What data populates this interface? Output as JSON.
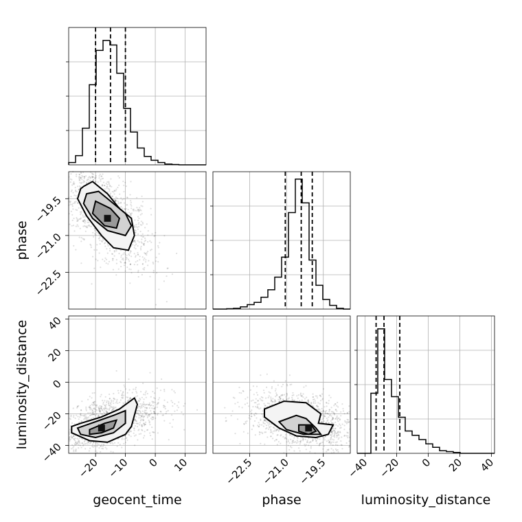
{
  "chart_data": {
    "type": "corner",
    "parameters": [
      "geocent_time",
      "phase",
      "luminosity_distance"
    ],
    "ranges": {
      "geocent_time": [
        -29,
        17
      ],
      "phase": [
        -24.0,
        -18.4
      ],
      "luminosity_distance": [
        -45,
        42
      ]
    },
    "ticks": {
      "geocent_time": [
        -20,
        -10,
        0,
        10
      ],
      "phase": [
        -22.5,
        -21.0,
        -19.5
      ],
      "luminosity_distance": [
        -40,
        -20,
        0,
        20,
        40
      ]
    },
    "tick_labels": {
      "geocent_time": [
        "−20",
        "−10",
        "0",
        "10"
      ],
      "phase": [
        "−22.5",
        "−21.0",
        "−19.5"
      ],
      "luminosity_distance": [
        "−40",
        "−20",
        "0",
        "20",
        "40"
      ]
    },
    "grid": true,
    "histograms": [
      {
        "parameter": "geocent_time",
        "bin_edges": [
          -29,
          -26.7,
          -24.4,
          -22.1,
          -19.8,
          -17.5,
          -15.2,
          -12.9,
          -10.6,
          -8.3,
          -6.0,
          -3.7,
          -1.4,
          0.9,
          3.2,
          5.6,
          7.9,
          10.2,
          12.5,
          14.8,
          17
        ],
        "counts": [
          3,
          12,
          48,
          105,
          150,
          163,
          157,
          120,
          74,
          43,
          22,
          11,
          6,
          3,
          1,
          0.5,
          0,
          0,
          0,
          0
        ],
        "quantiles": [
          -20,
          -15,
          -10
        ],
        "ylim": [
          0,
          180
        ]
      },
      {
        "parameter": "phase",
        "bin_edges": [
          -24.0,
          -23.72,
          -23.44,
          -23.16,
          -22.88,
          -22.6,
          -22.32,
          -22.04,
          -21.76,
          -21.48,
          -21.2,
          -20.92,
          -20.64,
          -20.36,
          -20.08,
          -19.8,
          -19.52,
          -19.24,
          -18.96,
          -18.68,
          -18.4
        ],
        "counts": [
          0,
          0,
          0.5,
          1,
          3,
          6,
          9,
          16,
          26,
          43,
          70,
          130,
          175,
          143,
          66,
          32,
          13,
          5,
          1,
          0
        ],
        "quantiles": [
          -21.05,
          -20.4,
          -19.95
        ],
        "ylim": [
          0,
          185
        ]
      },
      {
        "parameter": "luminosity_distance",
        "bin_edges": [
          -45,
          -40.65,
          -36.3,
          -31.95,
          -27.6,
          -23.25,
          -18.9,
          -14.55,
          -10.2,
          -5.85,
          -1.5,
          2.85,
          7.2,
          11.55,
          15.9,
          20.25,
          24.6,
          28.95,
          33.3,
          37.65,
          42
        ],
        "counts": [
          0,
          0,
          70,
          145,
          86,
          66,
          42,
          26,
          21,
          16,
          11,
          7,
          3,
          2,
          1,
          0,
          0,
          0,
          0,
          0
        ],
        "quantiles": [
          -33,
          -28,
          -18
        ],
        "ylim": [
          0,
          160
        ]
      }
    ],
    "pairs": [
      {
        "x": "geocent_time",
        "y": "phase",
        "peak": [
          -16,
          -20.3
        ],
        "contours": [
          [
            [
              -24,
              -19.0
            ],
            [
              -21,
              -18.8
            ],
            [
              -16,
              -19.3
            ],
            [
              -12,
              -19.9
            ],
            [
              -8,
              -20.3
            ],
            [
              -7,
              -21.0
            ],
            [
              -9,
              -21.6
            ],
            [
              -14,
              -21.5
            ],
            [
              -18,
              -21.0
            ],
            [
              -23,
              -20.2
            ],
            [
              -26,
              -19.5
            ],
            [
              -25,
              -19.1
            ]
          ],
          [
            [
              -23,
              -19.3
            ],
            [
              -19,
              -19.2
            ],
            [
              -15,
              -19.6
            ],
            [
              -10,
              -20.1
            ],
            [
              -8,
              -20.6
            ],
            [
              -10,
              -21.0
            ],
            [
              -16,
              -20.8
            ],
            [
              -21,
              -20.3
            ],
            [
              -24,
              -19.7
            ]
          ],
          [
            [
              -20,
              -19.6
            ],
            [
              -15,
              -19.9
            ],
            [
              -12,
              -20.3
            ],
            [
              -13,
              -20.7
            ],
            [
              -17,
              -20.6
            ],
            [
              -21,
              -20.1
            ]
          ]
        ]
      },
      {
        "x": "geocent_time",
        "y": "luminosity_distance",
        "peak": [
          -18,
          -29
        ],
        "contours": [
          [
            [
              -28,
              -28
            ],
            [
              -25,
              -26
            ],
            [
              -18,
              -22
            ],
            [
              -12,
              -17
            ],
            [
              -7,
              -10
            ],
            [
              -6,
              -14
            ],
            [
              -8,
              -28
            ],
            [
              -10,
              -33
            ],
            [
              -16,
              -38
            ],
            [
              -22,
              -37
            ],
            [
              -28,
              -32
            ]
          ],
          [
            [
              -26,
              -29
            ],
            [
              -20,
              -25
            ],
            [
              -14,
              -21
            ],
            [
              -10,
              -18
            ],
            [
              -10,
              -26
            ],
            [
              -14,
              -32
            ],
            [
              -20,
              -35
            ],
            [
              -25,
              -33
            ]
          ],
          [
            [
              -22,
              -30
            ],
            [
              -17,
              -26
            ],
            [
              -13,
              -24
            ],
            [
              -14,
              -29
            ],
            [
              -18,
              -32
            ],
            [
              -22,
              -33
            ]
          ]
        ]
      },
      {
        "x": "phase",
        "y": "luminosity_distance",
        "peak": [
          -20.1,
          -29
        ],
        "contours": [
          [
            [
              -21.9,
              -17
            ],
            [
              -21.1,
              -12
            ],
            [
              -20.2,
              -13
            ],
            [
              -19.6,
              -20
            ],
            [
              -19.7,
              -26
            ],
            [
              -19.1,
              -27
            ],
            [
              -19.3,
              -33
            ],
            [
              -19.8,
              -35
            ],
            [
              -20.6,
              -34
            ],
            [
              -21.3,
              -29
            ],
            [
              -21.9,
              -22
            ]
          ],
          [
            [
              -21.3,
              -25
            ],
            [
              -20.6,
              -21
            ],
            [
              -20.2,
              -23
            ],
            [
              -19.8,
              -29
            ],
            [
              -19.6,
              -33
            ],
            [
              -20.3,
              -33
            ],
            [
              -21.0,
              -30
            ]
          ],
          [
            [
              -20.5,
              -27
            ],
            [
              -20.0,
              -27
            ],
            [
              -19.8,
              -31
            ],
            [
              -20.1,
              -33
            ],
            [
              -20.5,
              -31
            ]
          ]
        ]
      }
    ]
  }
}
